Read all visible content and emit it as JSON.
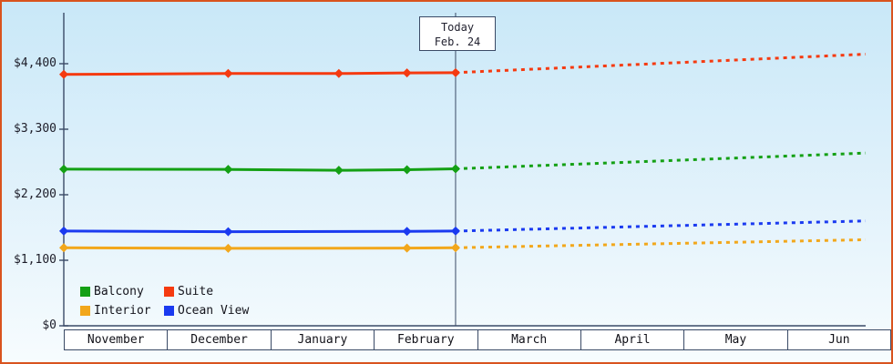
{
  "chart_data": {
    "type": "line",
    "y_ticks": [
      {
        "label": "$0",
        "value": 0
      },
      {
        "label": "$1,100",
        "value": 1100
      },
      {
        "label": "$2,200",
        "value": 2200
      },
      {
        "label": "$3,300",
        "value": 3300
      },
      {
        "label": "$4,400",
        "value": 4400
      }
    ],
    "ylim": [
      0,
      5260
    ],
    "x_categories": [
      "November",
      "December",
      "January",
      "February",
      "March",
      "April",
      "May",
      "Jun"
    ],
    "grid": false,
    "today_marker": {
      "line1": "Today",
      "line2": "Feb. 24",
      "x_frac": 0.4886
    },
    "legend_position": "bottom-left-inside",
    "series": [
      {
        "name": "Balcony",
        "color": "#14a014",
        "solid": [
          [
            0,
            2630
          ],
          [
            0.205,
            2625
          ],
          [
            0.343,
            2610
          ],
          [
            0.428,
            2620
          ],
          [
            0.4886,
            2635
          ]
        ],
        "dashed": [
          [
            0.4886,
            2635
          ],
          [
            1,
            2900
          ]
        ]
      },
      {
        "name": "Suite",
        "color": "#f53a10",
        "solid": [
          [
            0,
            4220
          ],
          [
            0.205,
            4235
          ],
          [
            0.343,
            4235
          ],
          [
            0.428,
            4245
          ],
          [
            0.4886,
            4250
          ]
        ],
        "dashed": [
          [
            0.4886,
            4250
          ],
          [
            1,
            4560
          ]
        ]
      },
      {
        "name": "Interior",
        "color": "#f2a71b",
        "solid": [
          [
            0,
            1310
          ],
          [
            0.205,
            1300
          ],
          [
            0.428,
            1305
          ],
          [
            0.4886,
            1310
          ]
        ],
        "dashed": [
          [
            0.4886,
            1310
          ],
          [
            1,
            1445
          ]
        ]
      },
      {
        "name": "Ocean View",
        "color": "#1a3af0",
        "solid": [
          [
            0,
            1590
          ],
          [
            0.205,
            1580
          ],
          [
            0.428,
            1585
          ],
          [
            0.4886,
            1590
          ]
        ],
        "dashed": [
          [
            0.4886,
            1590
          ],
          [
            1,
            1760
          ]
        ]
      }
    ],
    "legend": [
      {
        "label": "Balcony",
        "color": "#14a014"
      },
      {
        "label": "Suite",
        "color": "#f53a10"
      },
      {
        "label": "Interior",
        "color": "#f2a71b"
      },
      {
        "label": "Ocean View",
        "color": "#1a3af0"
      }
    ],
    "colors": {
      "axis": "#3a4a66",
      "frame_border": "#d9531e",
      "plot_bg_top": "#c9e8f8",
      "plot_bg_mid": "#e2f2fb",
      "plot_bg_bottom": "#f7fcfe",
      "month_box_bg": "#ffffff",
      "text": "#1c1c28"
    }
  }
}
